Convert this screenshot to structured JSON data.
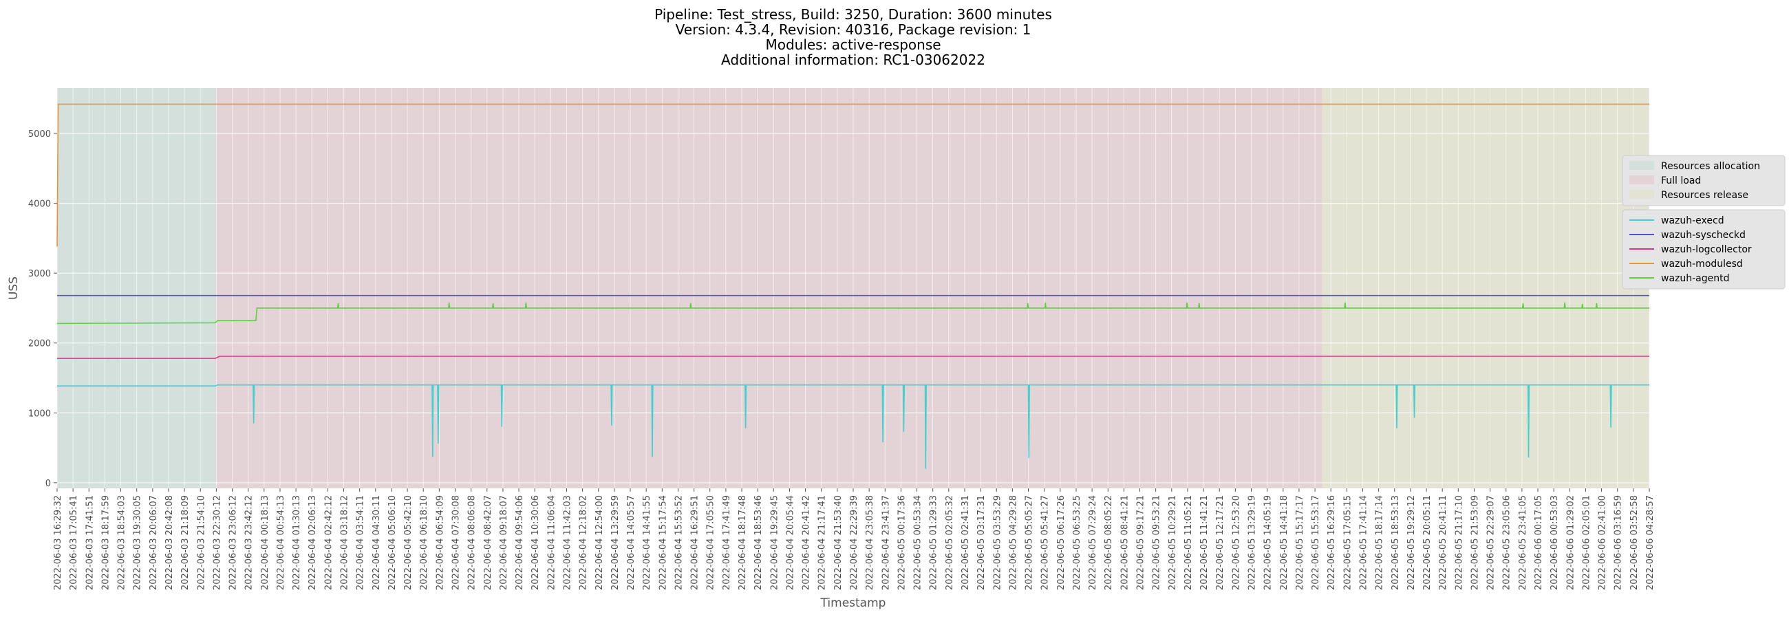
{
  "title_lines": [
    "Pipeline: Test_stress, Build: 3250, Duration: 3600 minutes",
    "Version: 4.3.4, Revision: 40316, Package revision: 1",
    "Modules: active-response",
    "Additional information: RC1-03062022"
  ],
  "colors": {
    "plot_bg": "#e5e5e5",
    "grid": "#ffffff",
    "Resources allocation": "#d3e0dc",
    "Full load": "#e3d3d6",
    "Resources release": "#e3e3d3"
  },
  "chart_data": {
    "type": "line",
    "xlabel": "Timestamp",
    "ylabel": "USS",
    "ylim": [
      -80,
      5650
    ],
    "xlim": [
      0,
      145
    ],
    "grid": true,
    "legend_placement": "right",
    "yticks": [
      0,
      1000,
      2000,
      3000,
      4000,
      5000
    ],
    "x_ticks": [
      "2022-06-03 16:29:32",
      "2022-06-03 17:05:41",
      "2022-06-03 17:41:51",
      "2022-06-03 18:17:59",
      "2022-06-03 18:54:03",
      "2022-06-03 19:30:05",
      "2022-06-03 20:06:07",
      "2022-06-03 20:42:08",
      "2022-06-03 21:18:09",
      "2022-06-03 21:54:10",
      "2022-06-03 22:30:12",
      "2022-06-03 23:06:12",
      "2022-06-03 23:42:12",
      "2022-06-04 00:18:13",
      "2022-06-04 00:54:13",
      "2022-06-04 01:30:13",
      "2022-06-04 02:06:13",
      "2022-06-04 02:42:12",
      "2022-06-04 03:18:12",
      "2022-06-04 03:54:11",
      "2022-06-04 04:30:11",
      "2022-06-04 05:06:10",
      "2022-06-04 05:42:10",
      "2022-06-04 06:18:10",
      "2022-06-04 06:54:09",
      "2022-06-04 07:30:08",
      "2022-06-04 08:06:08",
      "2022-06-04 08:42:07",
      "2022-06-04 09:18:07",
      "2022-06-04 09:54:06",
      "2022-06-04 10:30:06",
      "2022-06-04 11:06:04",
      "2022-06-04 11:42:03",
      "2022-06-04 12:18:02",
      "2022-06-04 12:54:00",
      "2022-06-04 13:29:59",
      "2022-06-04 14:05:57",
      "2022-06-04 14:41:55",
      "2022-06-04 15:17:54",
      "2022-06-04 15:53:52",
      "2022-06-04 16:29:51",
      "2022-06-04 17:05:50",
      "2022-06-04 17:41:49",
      "2022-06-04 18:17:48",
      "2022-06-04 18:53:46",
      "2022-06-04 19:29:45",
      "2022-06-04 20:05:44",
      "2022-06-04 20:41:42",
      "2022-06-04 21:17:41",
      "2022-06-04 21:53:40",
      "2022-06-04 22:29:39",
      "2022-06-04 23:05:38",
      "2022-06-04 23:41:37",
      "2022-06-05 00:17:36",
      "2022-06-05 00:53:34",
      "2022-06-05 01:29:33",
      "2022-06-05 02:05:32",
      "2022-06-05 02:41:31",
      "2022-06-05 03:17:31",
      "2022-06-05 03:53:29",
      "2022-06-05 04:29:28",
      "2022-06-05 05:05:27",
      "2022-06-05 05:41:27",
      "2022-06-05 06:17:26",
      "2022-06-05 06:53:25",
      "2022-06-05 07:29:24",
      "2022-06-05 08:05:22",
      "2022-06-05 08:41:21",
      "2022-06-05 09:17:21",
      "2022-06-05 09:53:21",
      "2022-06-05 10:29:21",
      "2022-06-05 11:05:21",
      "2022-06-05 11:41:21",
      "2022-06-05 12:17:21",
      "2022-06-05 12:53:20",
      "2022-06-05 13:29:19",
      "2022-06-05 14:05:19",
      "2022-06-05 14:41:18",
      "2022-06-05 15:17:17",
      "2022-06-05 15:53:17",
      "2022-06-05 16:29:16",
      "2022-06-05 17:05:15",
      "2022-06-05 17:41:14",
      "2022-06-05 18:17:14",
      "2022-06-05 18:53:13",
      "2022-06-05 19:29:12",
      "2022-06-05 20:05:11",
      "2022-06-05 20:41:11",
      "2022-06-05 21:17:10",
      "2022-06-05 21:53:09",
      "2022-06-05 22:29:07",
      "2022-06-05 23:05:06",
      "2022-06-05 23:41:05",
      "2022-06-06 00:17:05",
      "2022-06-06 00:53:03",
      "2022-06-06 01:29:02",
      "2022-06-06 02:05:01",
      "2022-06-06 02:41:00",
      "2022-06-06 03:16:59",
      "2022-06-06 03:52:58",
      "2022-06-06 04:28:57"
    ],
    "phases": [
      {
        "name": "Resources allocation",
        "x0": 0,
        "x1": 14.4
      },
      {
        "name": "Full load",
        "x0": 14.4,
        "x1": 115.2
      },
      {
        "name": "Resources release",
        "x0": 115.2,
        "x1": 145
      }
    ],
    "series": [
      {
        "name": "wazuh-execd",
        "color": "#3fd0d0",
        "base": [
          [
            0,
            1385
          ],
          [
            14.4,
            1385
          ],
          [
            14.6,
            1400
          ],
          [
            145,
            1400
          ]
        ],
        "spikes": [
          [
            17.9,
            850
          ],
          [
            34.2,
            370
          ],
          [
            34.7,
            560
          ],
          [
            40.5,
            800
          ],
          [
            50.5,
            820
          ],
          [
            54.2,
            370
          ],
          [
            62.7,
            780
          ],
          [
            75.2,
            580
          ],
          [
            77.1,
            730
          ],
          [
            79.1,
            200
          ],
          [
            88.5,
            350
          ],
          [
            122,
            780
          ],
          [
            123.6,
            930
          ],
          [
            134,
            360
          ],
          [
            141.5,
            790
          ]
        ]
      },
      {
        "name": "wazuh-syscheckd",
        "color": "#5a4fcf",
        "base": [
          [
            0,
            2680
          ],
          [
            145,
            2680
          ]
        ],
        "spikes": []
      },
      {
        "name": "wazuh-logcollector",
        "color": "#d83a8a",
        "base": [
          [
            0,
            1780
          ],
          [
            14.4,
            1780
          ],
          [
            14.8,
            1810
          ],
          [
            145,
            1810
          ]
        ],
        "spikes": []
      },
      {
        "name": "wazuh-modulesd",
        "color": "#e8963a",
        "base": [
          [
            0,
            3380
          ],
          [
            0.1,
            5420
          ],
          [
            145,
            5420
          ]
        ],
        "spikes": []
      },
      {
        "name": "wazuh-agentd",
        "color": "#5fd040",
        "base": [
          [
            0,
            2280
          ],
          [
            14.4,
            2290
          ],
          [
            14.6,
            2320
          ],
          [
            18.1,
            2320
          ],
          [
            18.2,
            2500
          ],
          [
            145,
            2500
          ]
        ],
        "spikes": [
          [
            25.6,
            2570
          ],
          [
            35.7,
            2580
          ],
          [
            39.7,
            2570
          ],
          [
            42.7,
            2580
          ],
          [
            57.7,
            2570
          ],
          [
            88.4,
            2570
          ],
          [
            90,
            2580
          ],
          [
            102.9,
            2580
          ],
          [
            104,
            2570
          ],
          [
            117.3,
            2580
          ],
          [
            133.5,
            2570
          ],
          [
            137.3,
            2580
          ],
          [
            138.9,
            2560
          ],
          [
            140.2,
            2570
          ]
        ]
      }
    ]
  }
}
